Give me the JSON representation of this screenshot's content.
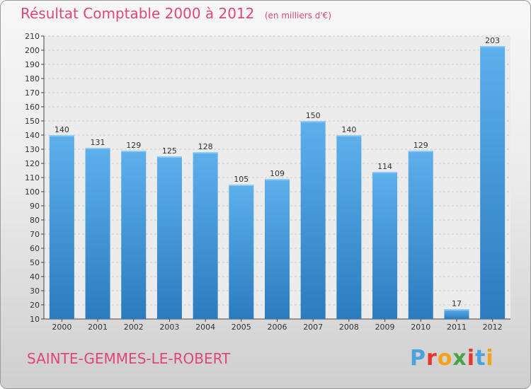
{
  "header": {
    "title": "Résultat Comptable 2000 à 2012",
    "unit": "(en milliers d'€)"
  },
  "footer": {
    "commune": "SAINTE-GEMMES-LE-ROBERT",
    "brand": "Proxiti"
  },
  "colors": {
    "title": "#e0457b",
    "bar_light": "#5db0ec",
    "bar_dark": "#2a7cbf",
    "brand": [
      "#4aa3df",
      "#e5362c",
      "#f2a31b",
      "#47a447",
      "#e5362c",
      "#4aa3df",
      "#f2a31b"
    ]
  },
  "chart_data": {
    "type": "bar",
    "title": "Résultat Comptable 2000 à 2012",
    "ylabel": "(en milliers d'€)",
    "xlabel": "",
    "categories": [
      "2000",
      "2001",
      "2002",
      "2003",
      "2004",
      "2005",
      "2006",
      "2007",
      "2008",
      "2009",
      "2010",
      "2011",
      "2012"
    ],
    "values": [
      140,
      131,
      129,
      125,
      128,
      105,
      109,
      150,
      140,
      114,
      129,
      17,
      203
    ],
    "ylim": [
      10,
      210
    ],
    "yticks": [
      10,
      20,
      30,
      40,
      50,
      60,
      70,
      80,
      90,
      100,
      110,
      120,
      130,
      140,
      150,
      160,
      170,
      180,
      190,
      200,
      210
    ],
    "grid": true
  }
}
